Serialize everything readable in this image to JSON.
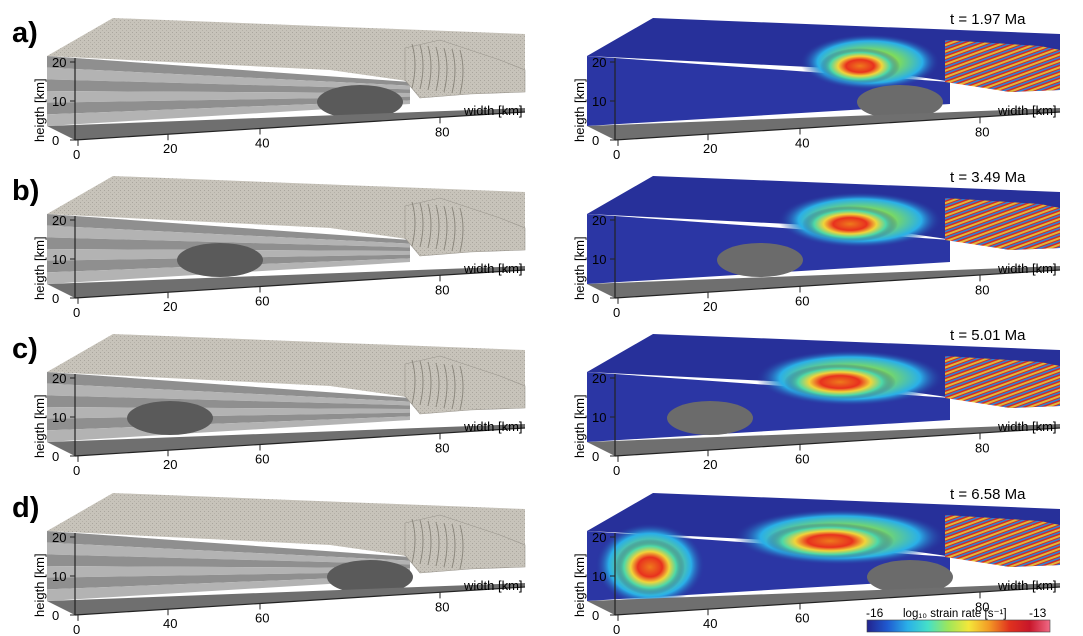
{
  "figure": {
    "panels": [
      {
        "label": "a)",
        "time": "t = 1.97 Ma",
        "left_ticks": [
          "0",
          "20",
          "40",
          "80"
        ],
        "right_ticks": [
          "0",
          "20",
          "40",
          "80"
        ],
        "y_ticks": [
          "0",
          "10",
          "20"
        ]
      },
      {
        "label": "b)",
        "time": "t = 3.49 Ma",
        "left_ticks": [
          "0",
          "20",
          "60",
          "80"
        ],
        "right_ticks": [
          "0",
          "20",
          "60",
          "80"
        ],
        "y_ticks": [
          "0",
          "10",
          "20"
        ]
      },
      {
        "label": "c)",
        "time": "t = 5.01 Ma",
        "left_ticks": [
          "0",
          "20",
          "60",
          "80"
        ],
        "right_ticks": [
          "0",
          "20",
          "60",
          "80"
        ],
        "y_ticks": [
          "0",
          "10",
          "20"
        ]
      },
      {
        "label": "d)",
        "time": "t = 6.58 Ma",
        "left_ticks": [
          "0",
          "40",
          "60",
          "80"
        ],
        "right_ticks": [
          "0",
          "40",
          "60",
          "80"
        ],
        "y_ticks": [
          "0",
          "10",
          "20"
        ]
      }
    ],
    "xlabel": "width [km]",
    "ylabel": "heigth [km]",
    "colorbar": {
      "min_label": "-16",
      "max_label": "-13",
      "label": "log₁₀ strain rate [s⁻¹]",
      "colors": [
        "#23238e",
        "#1f5ad0",
        "#2ab0e8",
        "#45e0c8",
        "#9ee65a",
        "#f4e73a",
        "#f39a25",
        "#e0321e",
        "#c8162a",
        "#f06a86"
      ]
    },
    "colors": {
      "sand": "#c3bfb6",
      "layer_dark": "#8f8f8f",
      "layer_light": "#b3b3b3",
      "dome": "#5a5a5a",
      "low_strain": "#27309a"
    }
  }
}
